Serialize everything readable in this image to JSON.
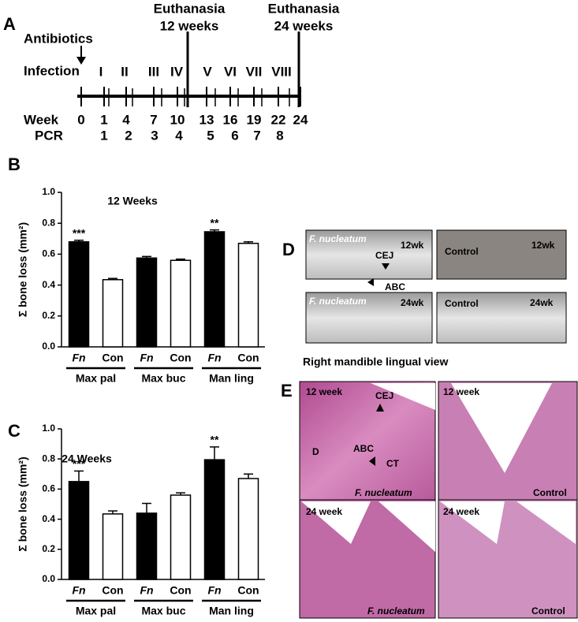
{
  "panels": {
    "A": {
      "letter": "A",
      "antibiotics": "Antibiotics",
      "infection": "Infection",
      "euthanasia": [
        {
          "line1": "Euthanasia",
          "line2": "12 weeks"
        },
        {
          "line1": "Euthanasia",
          "line2": "24 weeks"
        }
      ],
      "infections": [
        "I",
        "II",
        "III",
        "IV",
        "V",
        "VI",
        "VII",
        "VIII"
      ],
      "week_label": "Week",
      "weeks": [
        0,
        1,
        4,
        7,
        10,
        13,
        16,
        19,
        22,
        24
      ],
      "pcr_label": "PCR",
      "pcr": [
        1,
        2,
        3,
        4,
        5,
        6,
        7,
        8
      ]
    },
    "D": {
      "letter": "D",
      "fn": "F. nucleatum",
      "control": "Control",
      "wk12": "12wk",
      "wk24": "24wk",
      "cej": "CEJ",
      "abc": "ABC",
      "caption": "Right mandible lingual view"
    },
    "E": {
      "letter": "E",
      "week12": "12 week",
      "week24": "24 week",
      "cej": "CEJ",
      "d": "D",
      "abc": "ABC",
      "ct": "CT",
      "fn": "F. nucleatum",
      "control": "Control"
    }
  },
  "chart_data": [
    {
      "type": "bar",
      "letter": "B",
      "title": "12 Weeks",
      "y_label": "Σ bone loss (mm²)",
      "categories": [
        "Fn",
        "Con",
        "Fn",
        "Con",
        "Fn",
        "Con"
      ],
      "groups": [
        "Max pal",
        "Max buc",
        "Man ling"
      ],
      "values": [
        0.68,
        0.435,
        0.575,
        0.56,
        0.745,
        0.67
      ],
      "errors": [
        0.01,
        0.008,
        0.01,
        0.008,
        0.012,
        0.01
      ],
      "colors": [
        "#000000",
        "#ffffff",
        "#000000",
        "#ffffff",
        "#000000",
        "#ffffff"
      ],
      "significance": [
        "***",
        null,
        null,
        null,
        "**",
        null
      ],
      "ylim": [
        0,
        1
      ],
      "yticks": [
        {
          "value": 0,
          "label": "0.0"
        },
        0.2,
        0.4,
        0.6,
        0.8,
        {
          "value": 1,
          "label": "1.0"
        }
      ]
    },
    {
      "type": "bar",
      "letter": "C",
      "title": "24 Weeks",
      "y_label": "Σ bone loss (mm²)",
      "categories": [
        "Fn",
        "Con",
        "Fn",
        "Con",
        "Fn",
        "Con"
      ],
      "groups": [
        "Max pal",
        "Max buc",
        "Man ling"
      ],
      "values": [
        0.65,
        0.435,
        0.44,
        0.56,
        0.795,
        0.67
      ],
      "errors": [
        0.07,
        0.02,
        0.065,
        0.015,
        0.085,
        0.03
      ],
      "colors": [
        "#000000",
        "#ffffff",
        "#000000",
        "#ffffff",
        "#000000",
        "#ffffff"
      ],
      "significance": [
        "***",
        null,
        null,
        null,
        "**",
        null
      ],
      "ylim": [
        0,
        1
      ],
      "yticks": [
        {
          "value": 0,
          "label": "0.0"
        },
        0.2,
        0.4,
        0.6,
        0.8,
        {
          "value": 1,
          "label": "1.0"
        }
      ]
    }
  ]
}
